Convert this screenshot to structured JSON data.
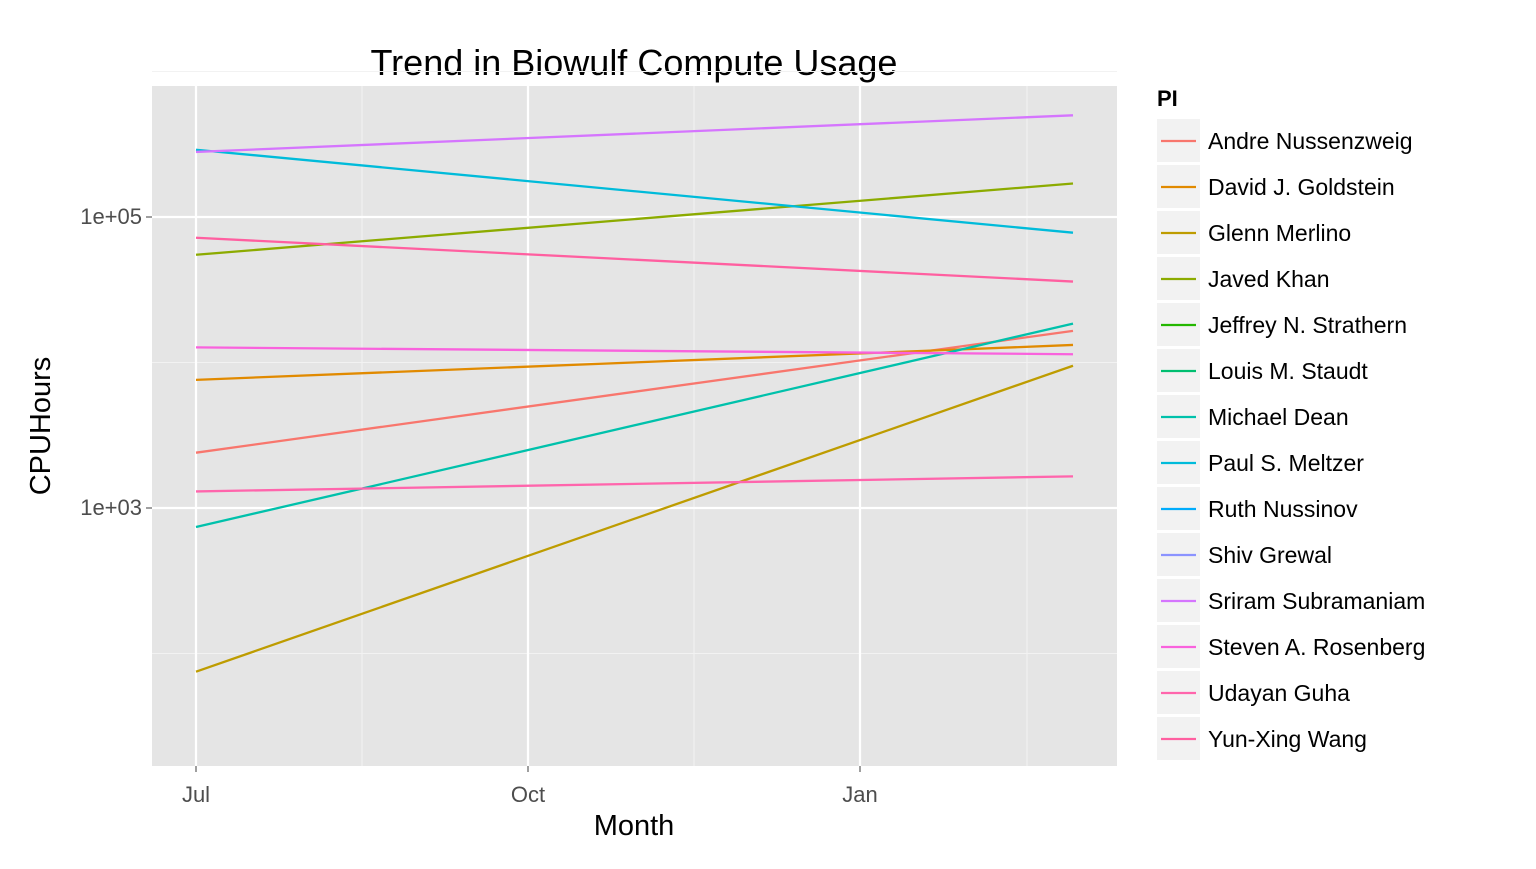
{
  "chart_data": {
    "type": "line",
    "title": "Trend in Biowulf Compute Usage",
    "xlabel": "Month",
    "ylabel": "CPUHours",
    "y_scale": "log10",
    "x_ticks": [
      "Jul",
      "Oct",
      "Jan"
    ],
    "y_ticks": [
      "1e+03",
      "1e+05"
    ],
    "grid": true,
    "legend_title": "PI",
    "legend_position": "right",
    "background": "#e5e5e5",
    "series": [
      {
        "name": "Andre Nussenzweig",
        "color": "#F8766D",
        "start": 2400,
        "end": 16500
      },
      {
        "name": "David J. Goldstein",
        "color": "#E18A00",
        "start": 7600,
        "end": 13200
      },
      {
        "name": "Glenn Merlino",
        "color": "#BE9C00",
        "start": 75,
        "end": 9500
      },
      {
        "name": "Javed Khan",
        "color": "#8CAB00",
        "start": 55000,
        "end": 170000
      },
      {
        "name": "Jeffrey N. Strathern",
        "color": "#24B700",
        "start": null,
        "end": null
      },
      {
        "name": "Louis M. Staudt",
        "color": "#00BE70",
        "start": null,
        "end": null
      },
      {
        "name": "Michael Dean",
        "color": "#00C1AB",
        "start": 740,
        "end": 18500
      },
      {
        "name": "Paul S. Meltzer",
        "color": "#00BBDA",
        "start": 290000,
        "end": 78000
      },
      {
        "name": "Ruth Nussinov",
        "color": "#00ACFC",
        "start": null,
        "end": null
      },
      {
        "name": "Shiv Grewal",
        "color": "#8B93FF",
        "start": null,
        "end": null
      },
      {
        "name": "Sriram Subramaniam",
        "color": "#D575FE",
        "start": 280000,
        "end": 500000
      },
      {
        "name": "Steven A. Rosenberg",
        "color": "#F962DD",
        "start": 12700,
        "end": 11400
      },
      {
        "name": "Udayan Guha",
        "color": "#FF65AC",
        "start": 1300,
        "end": 1650
      },
      {
        "name": "Yun-Xing Wang",
        "color": "#FF5FA0",
        "start": 72000,
        "end": 36000
      }
    ]
  }
}
